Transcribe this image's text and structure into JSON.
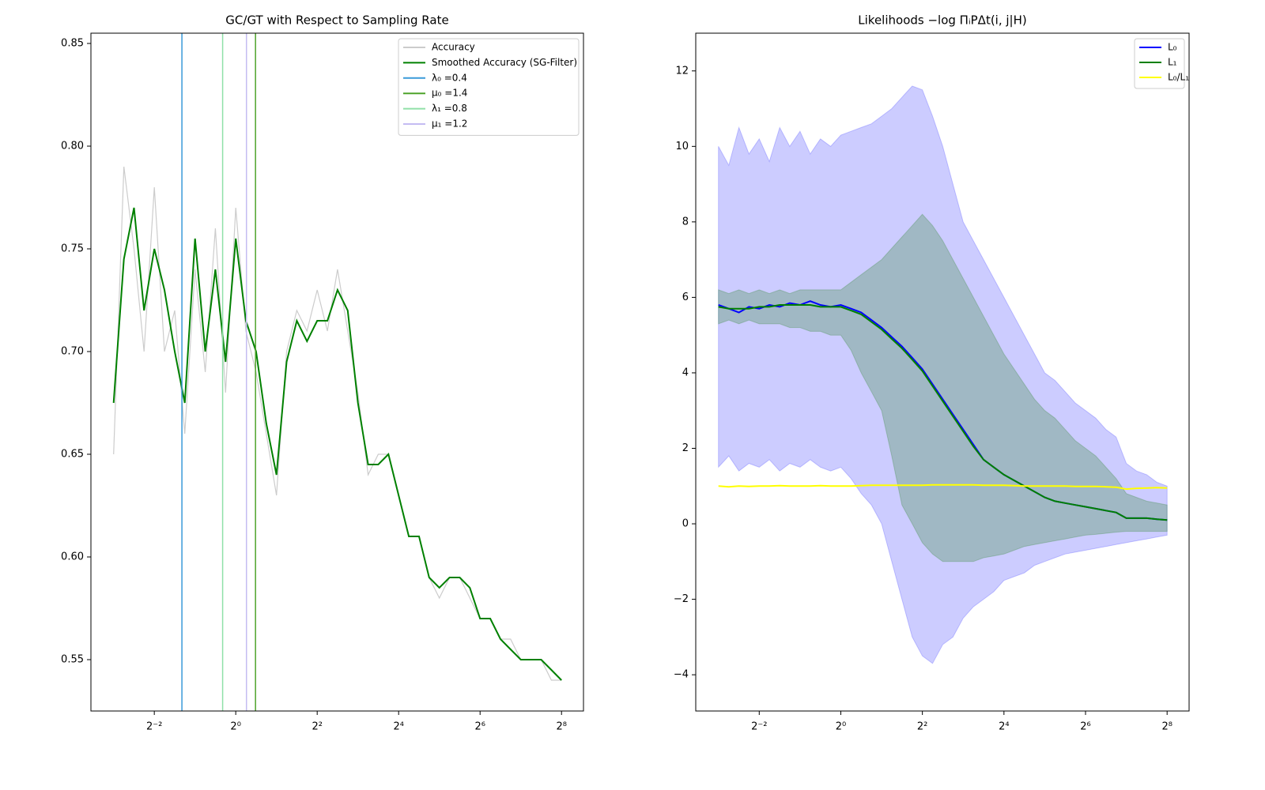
{
  "chart_data": [
    {
      "type": "line",
      "title": "GC/GT with Respect to Sampling Rate",
      "x": [
        0.125,
        0.149,
        0.177,
        0.21,
        0.25,
        0.297,
        0.354,
        0.42,
        0.5,
        0.595,
        0.707,
        0.841,
        1,
        1.189,
        1.414,
        1.682,
        2,
        2.378,
        2.828,
        3.364,
        4,
        4.757,
        5.657,
        6.727,
        8,
        9.514,
        11.31,
        13.45,
        16,
        19.03,
        22.63,
        26.91,
        32,
        38.05,
        45.25,
        53.82,
        64,
        76.11,
        90.51,
        107.6,
        128,
        152.2,
        181,
        215.3,
        256
      ],
      "series": [
        {
          "name": "Accuracy",
          "color": "#cccccc",
          "values": [
            0.65,
            0.79,
            0.75,
            0.7,
            0.78,
            0.7,
            0.72,
            0.66,
            0.74,
            0.69,
            0.76,
            0.68,
            0.77,
            0.71,
            0.69,
            0.66,
            0.63,
            0.7,
            0.72,
            0.71,
            0.73,
            0.71,
            0.74,
            0.71,
            0.68,
            0.64,
            0.65,
            0.65,
            0.63,
            0.61,
            0.61,
            0.59,
            0.58,
            0.59,
            0.59,
            0.58,
            0.57,
            0.57,
            0.56,
            0.56,
            0.55,
            0.55,
            0.55,
            0.54,
            0.54
          ]
        },
        {
          "name": "Smoothed Accuracy (SG-Filter)",
          "color": "#008000",
          "values": [
            0.675,
            0.745,
            0.77,
            0.72,
            0.75,
            0.73,
            0.7,
            0.675,
            0.755,
            0.7,
            0.74,
            0.695,
            0.755,
            0.715,
            0.7,
            0.665,
            0.64,
            0.695,
            0.715,
            0.705,
            0.715,
            0.715,
            0.73,
            0.72,
            0.675,
            0.645,
            0.645,
            0.65,
            0.63,
            0.61,
            0.61,
            0.59,
            0.585,
            0.59,
            0.59,
            0.585,
            0.57,
            0.57,
            0.56,
            0.555,
            0.55,
            0.55,
            0.55,
            0.545,
            0.54
          ]
        }
      ],
      "vlines": [
        {
          "name": "λ₀ =0.4",
          "color": "#3a9ad9",
          "x": 0.4
        },
        {
          "name": "μ₀ =1.4",
          "color": "#4ea32a",
          "x": 1.4
        },
        {
          "name": "λ₁ =0.8",
          "color": "#90e0a8",
          "x": 0.8
        },
        {
          "name": "μ₁ =1.2",
          "color": "#c4bcf2",
          "x": 1.2
        }
      ],
      "xscale": "log2",
      "xlim": [
        0.085,
        372
      ],
      "xticks": [
        {
          "value": 0.25,
          "label": "2⁻²"
        },
        {
          "value": 1,
          "label": "2⁰"
        },
        {
          "value": 4,
          "label": "2²"
        },
        {
          "value": 16,
          "label": "2⁴"
        },
        {
          "value": 64,
          "label": "2⁶"
        },
        {
          "value": 256,
          "label": "2⁸"
        }
      ],
      "ylim": [
        0.525,
        0.855
      ],
      "yticks": [
        0.55,
        {
          "value": 0.6,
          "label": "0.60"
        },
        0.65,
        {
          "value": 0.7,
          "label": "0.70"
        },
        0.75,
        {
          "value": 0.8,
          "label": "0.80"
        },
        0.85
      ],
      "legend": "upper right"
    },
    {
      "type": "line",
      "title": "Likelihoods −log ΠᵢPΔt(i, j|H)",
      "x": [
        0.125,
        0.149,
        0.177,
        0.21,
        0.25,
        0.297,
        0.354,
        0.42,
        0.5,
        0.595,
        0.707,
        0.841,
        1,
        1.189,
        1.414,
        1.682,
        2,
        2.378,
        2.828,
        3.364,
        4,
        4.757,
        5.657,
        6.727,
        8,
        9.514,
        11.31,
        13.45,
        16,
        19.03,
        22.63,
        26.91,
        32,
        38.05,
        45.25,
        53.82,
        64,
        76.11,
        90.51,
        107.6,
        128,
        152.2,
        181,
        215.3,
        256
      ],
      "series": [
        {
          "name": "L₀",
          "color": "#0000ff",
          "band_color": "rgba(0,0,255,0.2)",
          "values": [
            5.8,
            5.7,
            5.6,
            5.75,
            5.7,
            5.8,
            5.75,
            5.85,
            5.8,
            5.9,
            5.8,
            5.75,
            5.8,
            5.7,
            5.6,
            5.4,
            5.2,
            4.95,
            4.7,
            4.4,
            4.1,
            3.7,
            3.3,
            2.9,
            2.5,
            2.1,
            1.7,
            1.5,
            1.3,
            1.15,
            1.0,
            0.85,
            0.7,
            0.6,
            0.55,
            0.5,
            0.45,
            0.4,
            0.35,
            0.3,
            0.15,
            0.15,
            0.15,
            0.12,
            0.1
          ],
          "upper": [
            10,
            9.5,
            10.5,
            9.8,
            10.2,
            9.6,
            10.5,
            10,
            10.4,
            9.8,
            10.2,
            10,
            10.3,
            10.4,
            10.5,
            10.6,
            10.8,
            11,
            11.3,
            11.6,
            11.5,
            10.8,
            10,
            9,
            8,
            7.5,
            7,
            6.5,
            6,
            5.5,
            5,
            4.5,
            4,
            3.8,
            3.5,
            3.2,
            3,
            2.8,
            2.5,
            2.3,
            1.6,
            1.4,
            1.3,
            1.1,
            1.0
          ],
          "lower": [
            1.5,
            1.8,
            1.4,
            1.6,
            1.5,
            1.7,
            1.4,
            1.6,
            1.5,
            1.7,
            1.5,
            1.4,
            1.5,
            1.2,
            0.8,
            0.5,
            0,
            -1,
            -2,
            -3,
            -3.5,
            -3.7,
            -3.2,
            -3,
            -2.5,
            -2.2,
            -2,
            -1.8,
            -1.5,
            -1.4,
            -1.3,
            -1.1,
            -1,
            -0.9,
            -0.8,
            -0.75,
            -0.7,
            -0.65,
            -0.6,
            -0.55,
            -0.5,
            -0.45,
            -0.4,
            -0.35,
            -0.3
          ]
        },
        {
          "name": "L₁",
          "color": "#008000",
          "band_color": "rgba(60,140,60,0.3)",
          "values": [
            5.75,
            5.7,
            5.7,
            5.7,
            5.75,
            5.75,
            5.8,
            5.8,
            5.8,
            5.8,
            5.75,
            5.75,
            5.75,
            5.65,
            5.55,
            5.35,
            5.15,
            4.9,
            4.65,
            4.35,
            4.05,
            3.65,
            3.25,
            2.85,
            2.45,
            2.05,
            1.7,
            1.5,
            1.3,
            1.15,
            1.0,
            0.85,
            0.7,
            0.6,
            0.55,
            0.5,
            0.45,
            0.4,
            0.35,
            0.3,
            0.15,
            0.15,
            0.15,
            0.12,
            0.1
          ],
          "upper": [
            6.2,
            6.1,
            6.2,
            6.1,
            6.2,
            6.1,
            6.2,
            6.1,
            6.2,
            6.2,
            6.2,
            6.2,
            6.2,
            6.4,
            6.6,
            6.8,
            7.0,
            7.3,
            7.6,
            7.9,
            8.2,
            7.9,
            7.5,
            7.0,
            6.5,
            6.0,
            5.5,
            5.0,
            4.5,
            4.1,
            3.7,
            3.3,
            3.0,
            2.8,
            2.5,
            2.2,
            2.0,
            1.8,
            1.5,
            1.2,
            0.8,
            0.7,
            0.6,
            0.55,
            0.5
          ],
          "lower": [
            5.3,
            5.4,
            5.3,
            5.4,
            5.3,
            5.3,
            5.3,
            5.2,
            5.2,
            5.1,
            5.1,
            5.0,
            5.0,
            4.6,
            4.0,
            3.5,
            3.0,
            1.8,
            0.5,
            0,
            -0.5,
            -0.8,
            -1.0,
            -1.0,
            -1.0,
            -1.0,
            -0.9,
            -0.85,
            -0.8,
            -0.7,
            -0.6,
            -0.55,
            -0.5,
            -0.45,
            -0.4,
            -0.35,
            -0.3,
            -0.28,
            -0.25,
            -0.22,
            -0.2,
            -0.2,
            -0.2,
            -0.2,
            -0.2
          ]
        },
        {
          "name": "L₀/L₁",
          "color": "#ffff00",
          "values": [
            1.0,
            0.98,
            1.0,
            0.99,
            1.0,
            1.0,
            1.01,
            1.0,
            1.0,
            1.0,
            1.01,
            1.0,
            1.0,
            1.0,
            1.01,
            1.02,
            1.02,
            1.02,
            1.02,
            1.02,
            1.02,
            1.03,
            1.03,
            1.03,
            1.03,
            1.03,
            1.02,
            1.02,
            1.02,
            1.01,
            1.0,
            1.0,
            1.0,
            1.0,
            1.0,
            0.99,
            0.99,
            0.99,
            0.98,
            0.97,
            0.92,
            0.94,
            0.95,
            0.96,
            0.95
          ]
        }
      ],
      "xscale": "log2",
      "xlim": [
        0.085,
        372
      ],
      "xticks": [
        {
          "value": 0.25,
          "label": "2⁻²"
        },
        {
          "value": 1,
          "label": "2⁰"
        },
        {
          "value": 4,
          "label": "2²"
        },
        {
          "value": 16,
          "label": "2⁴"
        },
        {
          "value": 64,
          "label": "2⁶"
        },
        {
          "value": 256,
          "label": "2⁸"
        }
      ],
      "ylim": [
        -4.96,
        13.0
      ],
      "yticks": [
        {
          "value": -4,
          "label": "−4"
        },
        {
          "value": -2,
          "label": "−2"
        },
        0,
        2,
        4,
        6,
        8,
        10,
        12
      ],
      "legend": "upper right"
    }
  ]
}
